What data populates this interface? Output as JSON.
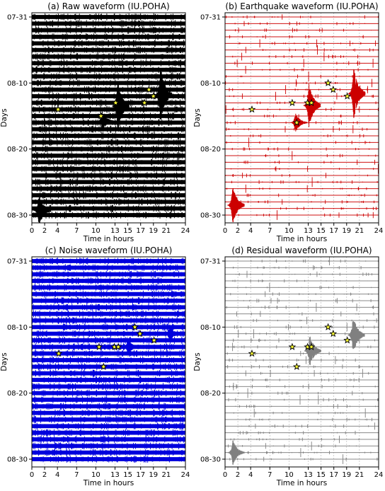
{
  "figure": {
    "background": "#ffffff"
  },
  "chart_data": [
    {
      "type": "line",
      "title": "(a) Raw waveform (IU.POHA)",
      "xlabel": "Time in hours",
      "ylabel": "Days",
      "xlim": [
        0,
        24
      ],
      "x_ticks": [
        0,
        2,
        4,
        7,
        10,
        13,
        15,
        17,
        19,
        21,
        24
      ],
      "y_tick_labels": [
        "07-31",
        "08-10",
        "08-20",
        "08-30"
      ],
      "day_rows": 31,
      "trace_color": "#000000",
      "trace_band": "thick",
      "events": [
        {
          "day": 11,
          "hour": 18.3
        },
        {
          "day": 12,
          "hour": 19.0
        },
        {
          "day": 13,
          "hour": 13.1
        },
        {
          "day": 13,
          "hour": 17.6
        },
        {
          "day": 14,
          "hour": 4.1
        },
        {
          "day": 15,
          "hour": 10.8
        }
      ],
      "bursts": [
        {
          "day": 11.8,
          "hour": 20.1,
          "amp": 4.5
        },
        {
          "day": 13.5,
          "hour": 13.4,
          "amp": 4.0
        },
        {
          "day": 15.8,
          "hour": 11.0,
          "amp": 1.5
        },
        {
          "day": 29.3,
          "hour": 1.1,
          "amp": 2.5
        }
      ]
    },
    {
      "type": "line",
      "title": "(b) Earthquake waveform (IU.POHA)",
      "xlabel": "Time in hours",
      "ylabel": "Days",
      "xlim": [
        0,
        24
      ],
      "x_ticks": [
        0,
        2,
        4,
        7,
        10,
        13,
        15,
        17,
        19,
        21,
        24
      ],
      "y_tick_labels": [
        "07-31",
        "08-10",
        "08-20",
        "08-30"
      ],
      "day_rows": 31,
      "trace_color": "#cc0000",
      "trace_band": "thin",
      "events": [
        {
          "day": 10,
          "hour": 16.1
        },
        {
          "day": 11,
          "hour": 16.9
        },
        {
          "day": 12,
          "hour": 19.1
        },
        {
          "day": 13,
          "hour": 10.5
        },
        {
          "day": 13,
          "hour": 12.9
        },
        {
          "day": 13,
          "hour": 13.5
        },
        {
          "day": 14,
          "hour": 4.2
        },
        {
          "day": 16,
          "hour": 11.2
        }
      ],
      "bursts": [
        {
          "day": 11.6,
          "hour": 20.1,
          "amp": 4.0
        },
        {
          "day": 13.4,
          "hour": 13.1,
          "amp": 3.5
        },
        {
          "day": 16.0,
          "hour": 11.0,
          "amp": 1.5
        },
        {
          "day": 28.5,
          "hour": 1.2,
          "amp": 3.0
        }
      ]
    },
    {
      "type": "line",
      "title": "(c) Noise waveform (IU.POHA)",
      "xlabel": "Time in hours",
      "ylabel": "Days",
      "xlim": [
        0,
        24
      ],
      "x_ticks": [
        0,
        2,
        4,
        7,
        10,
        13,
        15,
        17,
        19,
        21,
        24
      ],
      "y_tick_labels": [
        "07-31",
        "08-10",
        "08-20",
        "08-30"
      ],
      "day_rows": 31,
      "trace_color": "#0000dd",
      "trace_band": "thick",
      "events": [
        {
          "day": 10,
          "hour": 16.1
        },
        {
          "day": 11,
          "hour": 16.9
        },
        {
          "day": 12,
          "hour": 19.1
        },
        {
          "day": 13,
          "hour": 10.5
        },
        {
          "day": 13,
          "hour": 12.9
        },
        {
          "day": 13,
          "hour": 13.5
        },
        {
          "day": 14,
          "hour": 4.2
        },
        {
          "day": 16,
          "hour": 11.2
        }
      ],
      "bursts": [
        {
          "day": 11.0,
          "hour": 21.5,
          "amp": 1.3
        },
        {
          "day": 13.0,
          "hour": 15.0,
          "amp": 1.2
        }
      ]
    },
    {
      "type": "line",
      "title": "(d) Residual waveform (IU.POHA)",
      "xlabel": "Time in hours",
      "ylabel": "Days",
      "xlim": [
        0,
        24
      ],
      "x_ticks": [
        0,
        2,
        4,
        7,
        10,
        13,
        15,
        17,
        19,
        21,
        24
      ],
      "y_tick_labels": [
        "07-31",
        "08-10",
        "08-20",
        "08-30"
      ],
      "day_rows": 31,
      "trace_color": "#808080",
      "trace_band": "thin",
      "events": [
        {
          "day": 10,
          "hour": 16.1
        },
        {
          "day": 11,
          "hour": 16.9
        },
        {
          "day": 12,
          "hour": 19.1
        },
        {
          "day": 13,
          "hour": 10.5
        },
        {
          "day": 13,
          "hour": 12.9
        },
        {
          "day": 13,
          "hour": 13.5
        },
        {
          "day": 14,
          "hour": 4.2
        },
        {
          "day": 16,
          "hour": 11.2
        }
      ],
      "bursts": [
        {
          "day": 11.2,
          "hour": 20.0,
          "amp": 3.0
        },
        {
          "day": 13.6,
          "hour": 13.2,
          "amp": 2.5
        },
        {
          "day": 29.0,
          "hour": 1.2,
          "amp": 2.0
        }
      ]
    }
  ]
}
